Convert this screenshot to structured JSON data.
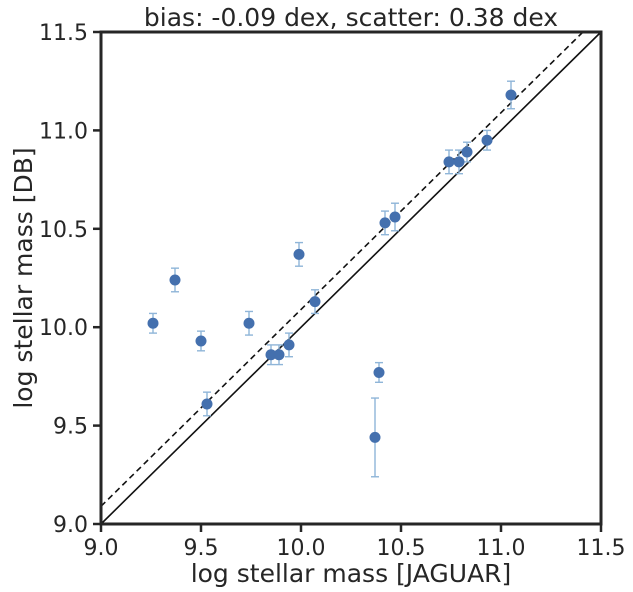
{
  "chart_data": {
    "type": "scatter",
    "title": "bias: -0.09 dex, scatter: 0.38 dex",
    "xlabel": "log stellar mass [JAGUAR]",
    "ylabel": "log stellar mass [DB]",
    "xlim": [
      9.0,
      11.5
    ],
    "ylim": [
      9.0,
      11.5
    ],
    "xticks": [
      "9.0",
      "9.5",
      "10.0",
      "10.5",
      "11.0",
      "11.5"
    ],
    "yticks": [
      "9.0",
      "9.5",
      "10.0",
      "10.5",
      "11.0",
      "11.5"
    ],
    "grid": false,
    "legend": "none",
    "colors": {
      "point": "#4470ae",
      "errorbar": "#8fb5d8",
      "line": "#111111",
      "axis": "#262626"
    },
    "reference_lines": [
      {
        "style": "solid",
        "slope": 1,
        "intercept": 0
      },
      {
        "style": "dashed",
        "slope": 1,
        "intercept": 0.09
      }
    ],
    "points": [
      {
        "x": 9.26,
        "y": 10.02,
        "yerr": 0.05
      },
      {
        "x": 9.37,
        "y": 10.24,
        "yerr": 0.06
      },
      {
        "x": 9.5,
        "y": 9.93,
        "yerr": 0.05
      },
      {
        "x": 9.53,
        "y": 9.61,
        "yerr": 0.06
      },
      {
        "x": 9.74,
        "y": 10.02,
        "yerr": 0.06
      },
      {
        "x": 9.85,
        "y": 9.86,
        "yerr": 0.05
      },
      {
        "x": 9.89,
        "y": 9.86,
        "yerr": 0.05
      },
      {
        "x": 9.94,
        "y": 9.91,
        "yerr": 0.06
      },
      {
        "x": 9.99,
        "y": 10.37,
        "yerr": 0.06
      },
      {
        "x": 10.07,
        "y": 10.13,
        "yerr": 0.06
      },
      {
        "x": 10.37,
        "y": 9.44,
        "yerr": 0.2
      },
      {
        "x": 10.39,
        "y": 9.77,
        "yerr": 0.05
      },
      {
        "x": 10.42,
        "y": 10.53,
        "yerr": 0.06
      },
      {
        "x": 10.47,
        "y": 10.56,
        "yerr": 0.07
      },
      {
        "x": 10.74,
        "y": 10.84,
        "yerr": 0.06
      },
      {
        "x": 10.79,
        "y": 10.84,
        "yerr": 0.06
      },
      {
        "x": 10.83,
        "y": 10.89,
        "yerr": 0.05
      },
      {
        "x": 10.93,
        "y": 10.95,
        "yerr": 0.05
      },
      {
        "x": 11.05,
        "y": 11.18,
        "yerr": 0.07
      }
    ]
  }
}
